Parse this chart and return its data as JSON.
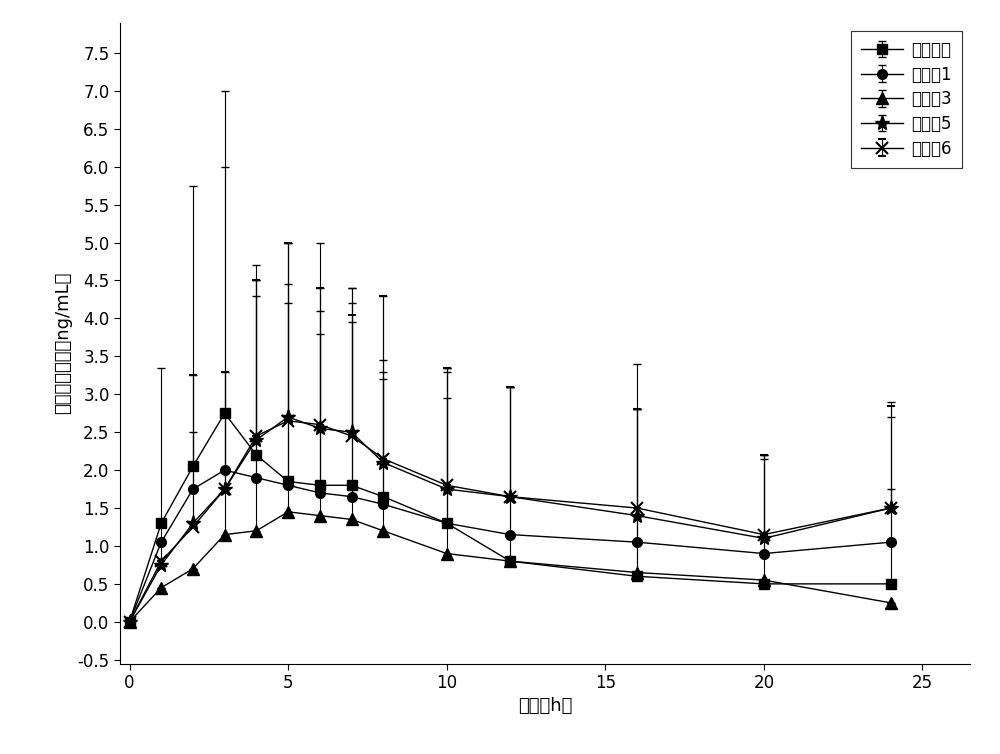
{
  "title": "",
  "xlabel": "时间（h）",
  "ylabel": "稳态血药浓度（ng/mL）",
  "xlim": [
    -0.3,
    26.5
  ],
  "ylim": [
    -0.55,
    7.9
  ],
  "xticks": [
    0,
    5,
    10,
    15,
    20,
    25
  ],
  "yticks": [
    -0.5,
    0.0,
    0.5,
    1.0,
    1.5,
    2.0,
    2.5,
    3.0,
    3.5,
    4.0,
    4.5,
    5.0,
    5.5,
    6.0,
    6.5,
    7.0,
    7.5
  ],
  "series": [
    {
      "label": "参比制剂",
      "marker": "s",
      "color": "#000000",
      "x": [
        0,
        1,
        2,
        3,
        4,
        5,
        6,
        7,
        8,
        10,
        12,
        16,
        20,
        24
      ],
      "y": [
        0.0,
        1.3,
        2.05,
        2.75,
        2.2,
        1.85,
        1.8,
        1.8,
        1.65,
        1.3,
        0.8,
        0.6,
        0.5,
        0.5
      ],
      "yerr_lo": [
        0.0,
        0.0,
        0.0,
        0.0,
        0.0,
        0.0,
        0.0,
        0.0,
        0.0,
        0.0,
        0.0,
        0.0,
        0.0,
        0.0
      ],
      "yerr_hi": [
        0.0,
        0.0,
        3.7,
        4.25,
        2.5,
        2.6,
        2.3,
        2.6,
        1.8,
        2.05,
        2.3,
        2.8,
        1.65,
        2.2
      ]
    },
    {
      "label": "实施例1",
      "marker": "o",
      "color": "#000000",
      "x": [
        0,
        1,
        2,
        3,
        4,
        5,
        6,
        7,
        8,
        10,
        12,
        16,
        20,
        24
      ],
      "y": [
        0.0,
        1.05,
        1.75,
        2.0,
        1.9,
        1.8,
        1.7,
        1.65,
        1.55,
        1.3,
        1.15,
        1.05,
        0.9,
        1.05
      ],
      "yerr_lo": [
        0.0,
        0.0,
        0.0,
        0.0,
        0.0,
        0.0,
        0.0,
        0.0,
        0.0,
        0.0,
        0.0,
        0.0,
        0.0,
        0.0
      ],
      "yerr_hi": [
        0.0,
        0.0,
        0.75,
        0.7,
        2.4,
        2.4,
        2.1,
        2.3,
        1.65,
        1.65,
        1.95,
        1.75,
        1.3,
        0.7
      ]
    },
    {
      "label": "实施例3",
      "marker": "^",
      "color": "#000000",
      "x": [
        0,
        1,
        2,
        3,
        4,
        5,
        6,
        7,
        8,
        10,
        12,
        16,
        20,
        24
      ],
      "y": [
        0.0,
        0.45,
        0.7,
        1.15,
        1.2,
        1.45,
        1.4,
        1.35,
        1.2,
        0.9,
        0.8,
        0.65,
        0.55,
        0.25
      ],
      "yerr_lo": [
        0.0,
        0.0,
        0.0,
        0.0,
        0.0,
        0.0,
        0.0,
        0.0,
        0.0,
        0.0,
        0.0,
        0.0,
        0.0,
        0.0
      ],
      "yerr_hi": [
        0.0,
        0.0,
        0.0,
        4.85,
        3.3,
        3.55,
        3.6,
        3.05,
        2.1,
        2.4,
        0.0,
        2.15,
        0.0,
        0.0
      ]
    },
    {
      "label": "实施例5",
      "marker": "*",
      "color": "#000000",
      "x": [
        0,
        1,
        2,
        3,
        4,
        5,
        6,
        7,
        8,
        10,
        12,
        16,
        20,
        24
      ],
      "y": [
        0.0,
        0.75,
        1.3,
        1.75,
        2.4,
        2.7,
        2.55,
        2.5,
        2.1,
        1.75,
        1.65,
        1.4,
        1.1,
        1.5
      ],
      "yerr_lo": [
        0.0,
        0.0,
        0.0,
        0.0,
        0.0,
        0.0,
        0.0,
        0.0,
        0.0,
        0.0,
        0.0,
        0.0,
        0.0,
        0.0
      ],
      "yerr_hi": [
        0.0,
        2.6,
        1.95,
        1.55,
        2.1,
        2.3,
        1.85,
        1.7,
        2.2,
        1.6,
        1.45,
        1.4,
        1.1,
        1.4
      ]
    },
    {
      "label": "实施例6",
      "marker": "x",
      "color": "#000000",
      "x": [
        0,
        1,
        2,
        3,
        4,
        5,
        6,
        7,
        8,
        10,
        12,
        16,
        20,
        24
      ],
      "y": [
        0.0,
        0.8,
        1.25,
        1.75,
        2.45,
        2.65,
        2.6,
        2.45,
        2.15,
        1.8,
        1.65,
        1.5,
        1.15,
        1.5
      ],
      "yerr_lo": [
        0.0,
        0.0,
        0.0,
        0.0,
        0.0,
        0.0,
        0.0,
        0.0,
        0.0,
        0.0,
        0.0,
        0.0,
        0.0,
        0.0
      ],
      "yerr_hi": [
        0.0,
        0.0,
        2.0,
        1.55,
        2.05,
        2.35,
        1.8,
        1.6,
        2.15,
        1.55,
        1.45,
        1.3,
        1.05,
        1.35
      ]
    }
  ],
  "background_color": "#ffffff",
  "font_size": 12,
  "legend_fontsize": 12,
  "axis_fontsize": 13,
  "tick_fontsize": 12
}
